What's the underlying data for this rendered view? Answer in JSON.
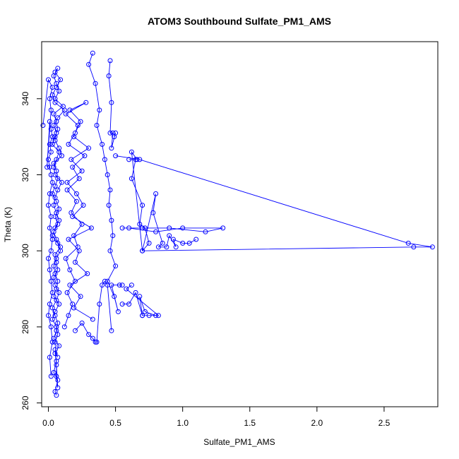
{
  "chart_data": {
    "type": "scatter",
    "title": "ATOM3 Southbound Sulfate_PM1_AMS",
    "xlabel": "Sulfate_PM1_AMS",
    "ylabel": "Theta (K)",
    "xlim": [
      -0.05,
      2.9
    ],
    "ylim": [
      259,
      355
    ],
    "xticks": [
      0.0,
      0.5,
      1.0,
      1.5,
      2.0,
      2.5
    ],
    "xtick_labels": [
      "0.0",
      "0.5",
      "1.0",
      "1.5",
      "2.0",
      "2.5"
    ],
    "yticks": [
      260,
      280,
      300,
      320,
      340
    ],
    "ytick_labels": [
      "260",
      "280",
      "300",
      "320",
      "340"
    ],
    "marker": "open-circle",
    "connected": true,
    "grid": false,
    "legend": "none",
    "colors": {
      "series": "#0000ff",
      "axis": "#000000"
    },
    "series": [
      {
        "x": [
          0.06,
          0.05,
          0.07,
          0.04,
          0.06,
          0.05,
          0.08,
          0.04,
          0.06,
          0.07,
          0.05,
          0.03,
          0.06,
          0.08,
          0.05,
          0.04,
          0.07,
          0.06,
          0.05,
          0.09,
          0.06,
          0.04,
          0.07,
          0.05,
          0.08,
          0.06,
          0.03,
          0.05,
          0.07,
          0.06,
          0.04,
          0.1,
          0.08,
          0.05,
          0.06,
          0.04,
          0.07,
          0.12,
          0.05,
          0.03,
          0.06,
          0.09,
          0.05,
          0.07,
          0.04,
          0.06,
          0.08,
          0.05,
          0.11,
          0.04,
          0.06,
          0.07,
          0.05,
          0.03,
          0.08,
          0.06,
          0.04,
          0.05,
          0.1,
          0.07,
          0.05,
          0.04,
          0.06,
          0.08,
          0.05,
          0.03,
          0.07,
          0.09,
          0.06,
          0.04,
          0.05,
          0.07,
          0.06,
          0.04,
          0.08,
          0.05,
          0.03,
          0.06,
          0.07,
          0.05,
          0.07,
          0.06,
          0.06,
          0.05,
          0.07
        ],
        "y": [
          262,
          263,
          266,
          268,
          271,
          273,
          275,
          277,
          279,
          281,
          283,
          285,
          287,
          289,
          291,
          293,
          295,
          297,
          299,
          301,
          303,
          305,
          307,
          309,
          311,
          313,
          315,
          317,
          319,
          321,
          323,
          325,
          327,
          329,
          331,
          333,
          335,
          337,
          339,
          341,
          343,
          345,
          347,
          348,
          346,
          344,
          342,
          340,
          338,
          336,
          334,
          332,
          330,
          328,
          326,
          324,
          322,
          320,
          318,
          316,
          314,
          312,
          310,
          308,
          306,
          304,
          302,
          300,
          298,
          296,
          294,
          292,
          290,
          288,
          286,
          284,
          282,
          280,
          278,
          276,
          264,
          267,
          270,
          274,
          272
        ]
      },
      {
        "x": [
          0.02,
          0.01,
          0.03,
          0.02,
          0.0,
          0.01,
          0.03,
          0.02,
          0.01,
          0.0,
          0.02,
          0.03,
          0.01,
          0.02,
          0.0,
          0.01,
          0.03,
          0.02,
          0.01,
          0.0,
          0.02,
          0.01,
          0.03,
          0.02,
          0.01,
          -0.01,
          0.02,
          0.01,
          0.03,
          0.0,
          -0.04
        ],
        "y": [
          267,
          272,
          276,
          280,
          283,
          286,
          289,
          292,
          295,
          298,
          300,
          303,
          306,
          309,
          312,
          315,
          318,
          320,
          322,
          324,
          326,
          328,
          330,
          332,
          334,
          322,
          337,
          340,
          343,
          345,
          333
        ]
      },
      {
        "x": [
          0.12,
          0.15,
          0.18,
          0.14,
          0.2,
          0.16,
          0.13,
          0.22,
          0.19,
          0.25,
          0.17,
          0.21,
          0.14,
          0.23,
          0.18,
          0.27,
          0.15,
          0.2,
          0.24,
          0.16,
          0.28,
          0.13,
          0.22,
          0.19,
          0.3,
          0.17,
          0.25,
          0.14,
          0.21,
          0.26,
          0.18,
          0.32,
          0.15,
          0.23,
          0.2,
          0.29,
          0.16,
          0.24,
          0.19,
          0.33
        ],
        "y": [
          280,
          283,
          286,
          289,
          292,
          295,
          298,
          301,
          304,
          307,
          310,
          313,
          316,
          319,
          322,
          325,
          328,
          331,
          334,
          337,
          339,
          336,
          333,
          330,
          327,
          324,
          321,
          318,
          315,
          312,
          309,
          306,
          303,
          300,
          297,
          294,
          291,
          288,
          285,
          282
        ]
      },
      {
        "x": [
          0.33,
          0.3,
          0.35,
          0.38,
          0.36,
          0.4,
          0.42,
          0.44,
          0.46,
          0.45,
          0.47,
          0.48,
          0.46,
          0.5,
          0.44,
          0.49,
          0.52,
          0.47,
          0.53,
          0.55
        ],
        "y": [
          352,
          349,
          344,
          337,
          333,
          328,
          324,
          320,
          316,
          312,
          308,
          304,
          300,
          296,
          292,
          288,
          284,
          291,
          291,
          291
        ]
      },
      {
        "x": [
          0.46,
          0.45,
          0.47,
          0.46,
          0.48,
          0.47,
          0.5,
          0.49
        ],
        "y": [
          350,
          346,
          339,
          331,
          331,
          327,
          331,
          330
        ]
      },
      {
        "x": [
          0.6,
          0.65,
          0.62,
          0.7,
          0.68,
          0.72,
          0.75,
          0.7,
          0.8,
          0.78,
          0.85,
          0.82,
          0.88,
          0.9,
          0.95,
          0.93,
          1.0,
          1.05,
          1.1
        ],
        "y": [
          324,
          324,
          319,
          312,
          307,
          306,
          302,
          300,
          315,
          310,
          302,
          301,
          301,
          304,
          301,
          303,
          302,
          302,
          303
        ]
      },
      {
        "x": [
          0.55,
          0.6,
          0.65,
          0.7,
          0.75,
          0.8,
          0.72,
          0.68,
          0.7,
          0.82,
          0.58,
          0.62
        ],
        "y": [
          286,
          286,
          289,
          283,
          283,
          283,
          284,
          288,
          283,
          283,
          290,
          291
        ]
      },
      {
        "x": [
          0.2,
          0.25,
          0.3,
          0.33,
          0.35,
          0.36,
          0.38,
          0.4,
          0.42,
          0.44,
          0.47
        ],
        "y": [
          279,
          281,
          278,
          277,
          276,
          276,
          286,
          291,
          292,
          291,
          279
        ]
      },
      {
        "x": [
          0.55,
          0.7,
          0.9,
          1.17,
          1.3,
          1.0,
          0.8,
          0.6
        ],
        "y": [
          306,
          306,
          306,
          305,
          306,
          306,
          305,
          306
        ]
      },
      {
        "x": [
          0.5,
          0.68,
          2.68,
          2.86,
          2.72,
          0.7,
          0.62,
          0.66
        ],
        "y": [
          325,
          324,
          302,
          301,
          301,
          300,
          326,
          324
        ]
      }
    ]
  }
}
